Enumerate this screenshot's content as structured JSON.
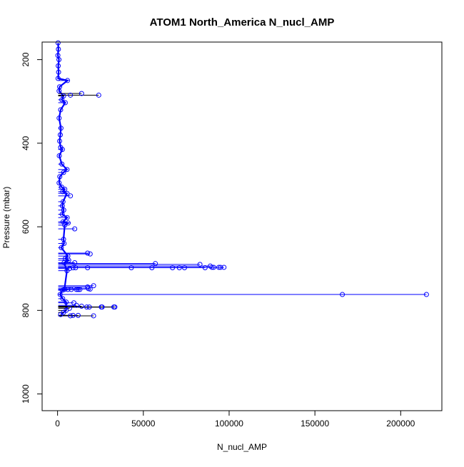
{
  "chart_data": {
    "type": "scatter",
    "title": "ATOM1 North_America N_nucl_AMP",
    "xlabel": "N_nucl_AMP",
    "ylabel": "Pressure (mbar)",
    "xlim": [
      -9000,
      224000
    ],
    "ylim": [
      1040,
      158
    ],
    "y_reversed": true,
    "x_ticks": [
      0,
      50000,
      100000,
      150000,
      200000
    ],
    "y_ticks": [
      200,
      400,
      600,
      800,
      1000
    ],
    "x_tick_labels": [
      "0",
      "50000",
      "100000",
      "150000",
      "200000"
    ],
    "y_tick_labels": [
      "200",
      "400",
      "600",
      "800",
      "1000"
    ],
    "marker": "open-circle",
    "grid": false,
    "legend": "none",
    "colors": {
      "series": "#0000ff",
      "axis": "#000000",
      "dark_line": "#000000"
    },
    "series": [
      {
        "points": [
          [
            300,
            160
          ],
          [
            500,
            175
          ],
          [
            200,
            190
          ],
          [
            800,
            200
          ],
          [
            400,
            215
          ],
          [
            600,
            230
          ],
          [
            300,
            245
          ],
          [
            5800,
            250
          ],
          [
            1200,
            265
          ],
          [
            900,
            275
          ],
          [
            14000,
            281
          ],
          [
            24000,
            285
          ],
          [
            7500,
            285
          ],
          [
            3500,
            287
          ],
          [
            2500,
            296
          ],
          [
            4500,
            303
          ],
          [
            1800,
            320
          ],
          [
            900,
            340
          ],
          [
            2000,
            364
          ],
          [
            1600,
            380
          ],
          [
            1200,
            395
          ],
          [
            1800,
            410
          ],
          [
            2800,
            415
          ],
          [
            1000,
            430
          ],
          [
            2500,
            450
          ],
          [
            5500,
            463
          ],
          [
            3500,
            470
          ],
          [
            1300,
            480
          ],
          [
            900,
            495
          ],
          [
            2400,
            505
          ],
          [
            4200,
            510
          ],
          [
            3000,
            516
          ],
          [
            5500,
            520
          ],
          [
            7500,
            526
          ],
          [
            3200,
            540
          ],
          [
            2800,
            550
          ],
          [
            3600,
            560
          ],
          [
            2700,
            570
          ],
          [
            5600,
            578
          ],
          [
            3200,
            588
          ],
          [
            6200,
            591
          ],
          [
            4200,
            596
          ],
          [
            10000,
            605
          ],
          [
            3500,
            630
          ],
          [
            3800,
            640
          ],
          [
            2200,
            650
          ],
          [
            17500,
            663
          ],
          [
            19000,
            665
          ],
          [
            6000,
            670
          ],
          [
            4500,
            676
          ],
          [
            6500,
            680
          ],
          [
            3800,
            686
          ],
          [
            10000,
            686
          ],
          [
            57000,
            688
          ],
          [
            83000,
            690
          ],
          [
            89000,
            694
          ],
          [
            90000,
            697
          ],
          [
            91000,
            697
          ],
          [
            94000,
            697
          ],
          [
            95000,
            697
          ],
          [
            97000,
            697
          ],
          [
            86000,
            698
          ],
          [
            74000,
            698
          ],
          [
            71000,
            698
          ],
          [
            67000,
            698
          ],
          [
            55000,
            698
          ],
          [
            43000,
            698
          ],
          [
            17500,
            698
          ],
          [
            10500,
            698
          ],
          [
            9000,
            698
          ],
          [
            7000,
            700
          ],
          [
            5500,
            705
          ],
          [
            21000,
            741
          ],
          [
            17500,
            744
          ],
          [
            18000,
            748
          ],
          [
            19000,
            749
          ],
          [
            4000,
            750
          ],
          [
            6000,
            750
          ],
          [
            8000,
            750
          ],
          [
            11000,
            750
          ],
          [
            12000,
            750
          ],
          [
            13000,
            750
          ],
          [
            2800,
            752
          ],
          [
            166000,
            762
          ],
          [
            215000,
            762
          ],
          [
            1500,
            762
          ],
          [
            3000,
            772
          ],
          [
            5000,
            780
          ],
          [
            9500,
            782
          ],
          [
            11000,
            788
          ],
          [
            14000,
            790
          ],
          [
            17000,
            792
          ],
          [
            18500,
            792
          ],
          [
            25500,
            792
          ],
          [
            26000,
            792
          ],
          [
            32800,
            792
          ],
          [
            33400,
            792
          ],
          [
            7000,
            795
          ],
          [
            5000,
            800
          ],
          [
            3500,
            805
          ],
          [
            1800,
            810
          ],
          [
            9000,
            812
          ],
          [
            12000,
            812
          ],
          [
            21000,
            813
          ],
          [
            7500,
            813
          ]
        ]
      }
    ]
  }
}
